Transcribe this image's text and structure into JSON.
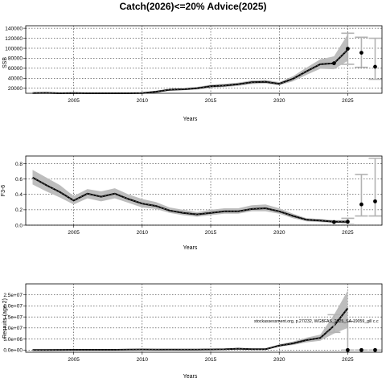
{
  "title": "Catch(2026)<=20% Advice(2025)",
  "watermark": "stockassessment.org, p.27/232, WGBFAS_2025_SA-19059_gill c.c",
  "colors": {
    "band": "#bdbdbd",
    "line": "#000000",
    "ci": "#b3b3b3",
    "grid": "#000000"
  },
  "chart_data": [
    {
      "type": "line",
      "ylabel": "SSB",
      "xlabel": "Years",
      "xlim": [
        2001.5,
        2027.5
      ],
      "ylim": [
        10000,
        145000
      ],
      "xticks": [
        2005,
        2010,
        2015,
        2020,
        2025
      ],
      "yticks": [
        20000,
        40000,
        60000,
        80000,
        100000,
        120000,
        140000
      ],
      "ytick_labels": [
        "20000",
        "40000",
        "60000",
        "80000",
        "100000",
        "120000",
        "140000"
      ],
      "grid": true,
      "series": [
        {
          "kind": "estimate",
          "x": [
            2002,
            2003,
            2004,
            2005,
            2006,
            2007,
            2008,
            2009,
            2010,
            2011,
            2012,
            2013,
            2014,
            2015,
            2016,
            2017,
            2018,
            2019,
            2020,
            2021,
            2022,
            2023,
            2024,
            2025
          ],
          "y": [
            10500,
            10800,
            9500,
            10300,
            9800,
            9500,
            9700,
            9000,
            10300,
            13000,
            17000,
            18000,
            20000,
            24000,
            25500,
            28000,
            32000,
            33000,
            29000,
            39000,
            54000,
            68000,
            70000,
            97000
          ],
          "lower": [
            9000,
            9200,
            8000,
            8800,
            8300,
            8000,
            8200,
            7500,
            8700,
            11000,
            15000,
            16000,
            17500,
            21000,
            22500,
            25000,
            28500,
            29500,
            26000,
            34000,
            47000,
            59000,
            58000,
            75000
          ],
          "upper": [
            12200,
            12500,
            11100,
            12000,
            11400,
            11100,
            11300,
            10500,
            12000,
            15200,
            19200,
            20300,
            22700,
            27200,
            28800,
            31200,
            35700,
            36700,
            32300,
            44300,
            61500,
            78000,
            84000,
            128000
          ]
        }
      ],
      "points": {
        "x": [
          2024,
          2025,
          2026,
          2027
        ],
        "y": [
          70000,
          99000,
          91000,
          63000
        ]
      },
      "intervals": {
        "x": [
          2025,
          2026,
          2027
        ],
        "lower": [
          68000,
          62000,
          38000
        ],
        "upper": [
          130000,
          122000,
          120000
        ]
      }
    },
    {
      "type": "line",
      "ylabel": "F3-6",
      "xlabel": "Years",
      "xlim": [
        2001.5,
        2027.5
      ],
      "ylim": [
        0,
        0.9
      ],
      "xticks": [
        2005,
        2010,
        2015,
        2020,
        2025
      ],
      "yticks": [
        0.0,
        0.2,
        0.4,
        0.6,
        0.8
      ],
      "ytick_labels": [
        "0.0",
        "0.2",
        "0.4",
        "0.6",
        "0.8"
      ],
      "grid": true,
      "series": [
        {
          "kind": "estimate",
          "x": [
            2002,
            2003,
            2004,
            2005,
            2006,
            2007,
            2008,
            2009,
            2010,
            2011,
            2012,
            2013,
            2014,
            2015,
            2016,
            2017,
            2018,
            2019,
            2020,
            2021,
            2022,
            2023,
            2024,
            2025
          ],
          "y": [
            0.62,
            0.52,
            0.43,
            0.32,
            0.41,
            0.37,
            0.41,
            0.34,
            0.28,
            0.25,
            0.19,
            0.16,
            0.14,
            0.16,
            0.18,
            0.18,
            0.21,
            0.22,
            0.18,
            0.12,
            0.07,
            0.06,
            0.045,
            0.045
          ],
          "lower": [
            0.53,
            0.44,
            0.36,
            0.27,
            0.35,
            0.31,
            0.35,
            0.29,
            0.23,
            0.21,
            0.16,
            0.13,
            0.11,
            0.13,
            0.15,
            0.15,
            0.18,
            0.18,
            0.15,
            0.09,
            0.05,
            0.04,
            0.03,
            0.03
          ],
          "upper": [
            0.72,
            0.62,
            0.52,
            0.38,
            0.47,
            0.44,
            0.48,
            0.4,
            0.34,
            0.3,
            0.23,
            0.2,
            0.17,
            0.2,
            0.22,
            0.22,
            0.26,
            0.27,
            0.22,
            0.15,
            0.09,
            0.08,
            0.065,
            0.065
          ]
        }
      ],
      "points": {
        "x": [
          2024,
          2025,
          2026,
          2027
        ],
        "y": [
          0.04,
          0.045,
          0.27,
          0.31
        ]
      },
      "intervals": {
        "x": [
          2025,
          2026,
          2027
        ],
        "lower": [
          0.01,
          0.12,
          0.12
        ],
        "upper": [
          0.09,
          0.66,
          0.87
        ]
      }
    },
    {
      "type": "line",
      "ylabel": "Recruits (age 2)",
      "xlabel": "Years",
      "xlim": [
        2001.5,
        2027.5
      ],
      "ylim": [
        -1000000,
        30000000
      ],
      "xticks": [
        2005,
        2010,
        2015,
        2020,
        2025
      ],
      "yticks": [
        0,
        5000000,
        10000000,
        15000000,
        20000000,
        25000000
      ],
      "ytick_labels": [
        "0.0e+00",
        "5.0e+06",
        "1.0e+07",
        "1.5e+07",
        "2.0e+07",
        "2.5e+07"
      ],
      "grid": true,
      "series": [
        {
          "kind": "estimate",
          "x": [
            2002,
            2003,
            2004,
            2005,
            2006,
            2007,
            2008,
            2009,
            2010,
            2011,
            2012,
            2013,
            2014,
            2015,
            2016,
            2017,
            2018,
            2019,
            2020,
            2021,
            2022,
            2023,
            2024,
            2025
          ],
          "y": [
            0,
            0,
            50000,
            80000,
            80000,
            100000,
            100000,
            150000,
            250000,
            200000,
            180000,
            200000,
            220000,
            250000,
            300000,
            600000,
            400000,
            400000,
            2000000,
            3000000,
            4500000,
            5500000,
            11000000,
            19000000
          ],
          "lower": [
            0,
            0,
            20000,
            40000,
            40000,
            50000,
            50000,
            80000,
            150000,
            120000,
            100000,
            120000,
            130000,
            150000,
            180000,
            350000,
            250000,
            250000,
            1500000,
            2300000,
            3500000,
            4200000,
            7500000,
            10000000
          ],
          "upper": [
            100000,
            100000,
            100000,
            150000,
            150000,
            180000,
            180000,
            250000,
            400000,
            320000,
            280000,
            300000,
            330000,
            380000,
            450000,
            900000,
            600000,
            600000,
            2600000,
            3800000,
            5600000,
            7000000,
            16000000,
            27000000
          ]
        }
      ],
      "points": {
        "x": [
          2025,
          2026,
          2027
        ],
        "y": [
          0,
          0,
          0
        ]
      },
      "intervals": {
        "x": [
          2024,
          2025,
          2026,
          2027
        ],
        "lower": [
          8000000,
          0,
          0,
          0
        ],
        "upper": [
          16000000,
          13000000,
          0,
          0
        ]
      }
    }
  ]
}
